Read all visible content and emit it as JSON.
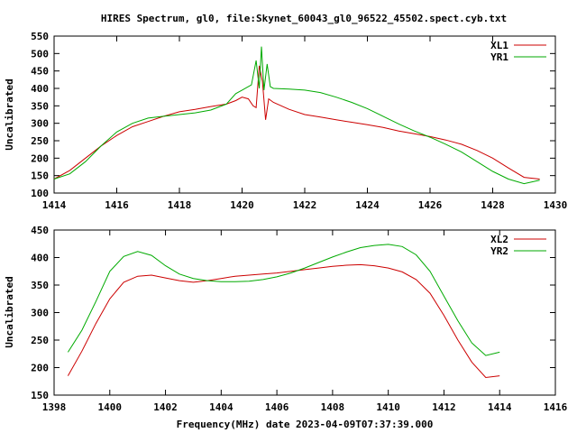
{
  "title": "HIRES Spectrum, gl0, file:Skynet_60043_gl0_96522_45502.spect.cyb.txt",
  "chart_data": [
    {
      "type": "line",
      "ylabel": "Uncalibrated",
      "xlabel": "",
      "xlim": [
        1414,
        1430
      ],
      "ylim": [
        100,
        550
      ],
      "xticks": [
        1414,
        1416,
        1418,
        1420,
        1422,
        1424,
        1426,
        1428,
        1430
      ],
      "xtick_labels": [
        "1414",
        "1416",
        "1418",
        "1420",
        "1422",
        "1424",
        "1426",
        "1428",
        "1430"
      ],
      "yticks": [
        100,
        150,
        200,
        250,
        300,
        350,
        400,
        450,
        500,
        550
      ],
      "ytick_labels": [
        "100",
        "150",
        "200",
        "250",
        "300",
        "350",
        "400",
        "450",
        "500",
        "550"
      ],
      "legend": "top-right",
      "series": [
        {
          "name": "XL1",
          "color": "#cc0000",
          "x": [
            1414.0,
            1414.5,
            1415.0,
            1415.5,
            1416.0,
            1416.5,
            1417.0,
            1417.5,
            1418.0,
            1418.5,
            1419.0,
            1419.5,
            1419.8,
            1420.0,
            1420.2,
            1420.35,
            1420.45,
            1420.55,
            1420.65,
            1420.75,
            1420.85,
            1421.0,
            1421.5,
            1422.0,
            1422.5,
            1423.0,
            1423.5,
            1424.0,
            1424.5,
            1425.0,
            1425.5,
            1426.0,
            1426.5,
            1427.0,
            1427.5,
            1428.0,
            1428.5,
            1429.0,
            1429.5
          ],
          "values": [
            140,
            165,
            200,
            235,
            265,
            290,
            305,
            320,
            333,
            340,
            348,
            355,
            365,
            375,
            370,
            350,
            345,
            465,
            420,
            310,
            370,
            360,
            340,
            325,
            318,
            310,
            303,
            296,
            288,
            278,
            270,
            262,
            252,
            240,
            222,
            200,
            172,
            145,
            140
          ]
        },
        {
          "name": "YR1",
          "color": "#00aa00",
          "x": [
            1414.0,
            1414.5,
            1415.0,
            1415.5,
            1416.0,
            1416.5,
            1417.0,
            1417.5,
            1418.0,
            1418.5,
            1419.0,
            1419.5,
            1419.8,
            1420.0,
            1420.3,
            1420.45,
            1420.55,
            1420.62,
            1420.7,
            1420.8,
            1420.9,
            1421.0,
            1421.5,
            1422.0,
            1422.5,
            1423.0,
            1423.5,
            1424.0,
            1424.5,
            1425.0,
            1425.5,
            1426.0,
            1426.5,
            1427.0,
            1427.5,
            1428.0,
            1428.5,
            1429.0,
            1429.5
          ],
          "values": [
            140,
            155,
            190,
            235,
            275,
            300,
            315,
            320,
            325,
            330,
            338,
            355,
            385,
            395,
            410,
            480,
            400,
            520,
            395,
            470,
            405,
            400,
            398,
            395,
            388,
            375,
            360,
            342,
            320,
            298,
            278,
            260,
            240,
            218,
            190,
            162,
            140,
            127,
            137
          ]
        }
      ]
    },
    {
      "type": "line",
      "ylabel": "Uncalibrated",
      "xlabel": "Frequency(MHz) date 2023-04-09T07:37:39.000",
      "xlim": [
        1398,
        1416
      ],
      "ylim": [
        150,
        450
      ],
      "xticks": [
        1398,
        1400,
        1402,
        1404,
        1406,
        1408,
        1410,
        1412,
        1414,
        1416
      ],
      "xtick_labels": [
        "1398",
        "1400",
        "1402",
        "1404",
        "1406",
        "1408",
        "1410",
        "1412",
        "1414",
        "1416"
      ],
      "yticks": [
        150,
        200,
        250,
        300,
        350,
        400,
        450
      ],
      "ytick_labels": [
        "150",
        "200",
        "250",
        "300",
        "350",
        "400",
        "450"
      ],
      "legend": "top-right",
      "series": [
        {
          "name": "XL2",
          "color": "#cc0000",
          "x": [
            1398.5,
            1399.0,
            1399.5,
            1400.0,
            1400.5,
            1401.0,
            1401.5,
            1402.0,
            1402.5,
            1403.0,
            1403.5,
            1404.0,
            1404.5,
            1405.0,
            1405.5,
            1406.0,
            1406.5,
            1407.0,
            1407.5,
            1408.0,
            1408.5,
            1409.0,
            1409.5,
            1410.0,
            1410.5,
            1411.0,
            1411.5,
            1412.0,
            1412.5,
            1413.0,
            1413.5,
            1414.0
          ],
          "values": [
            185,
            230,
            280,
            325,
            355,
            366,
            368,
            363,
            358,
            355,
            358,
            362,
            366,
            368,
            370,
            372,
            375,
            378,
            381,
            384,
            386,
            387,
            385,
            381,
            374,
            360,
            335,
            295,
            250,
            210,
            182,
            185
          ]
        },
        {
          "name": "YR2",
          "color": "#00aa00",
          "x": [
            1398.5,
            1399.0,
            1399.5,
            1400.0,
            1400.5,
            1401.0,
            1401.5,
            1402.0,
            1402.5,
            1403.0,
            1403.5,
            1404.0,
            1404.5,
            1405.0,
            1405.5,
            1406.0,
            1406.5,
            1407.0,
            1407.5,
            1408.0,
            1408.5,
            1409.0,
            1409.5,
            1410.0,
            1410.5,
            1411.0,
            1411.5,
            1412.0,
            1412.5,
            1413.0,
            1413.5,
            1414.0
          ],
          "values": [
            228,
            268,
            320,
            375,
            402,
            411,
            404,
            385,
            370,
            362,
            358,
            356,
            356,
            357,
            360,
            365,
            372,
            381,
            391,
            401,
            410,
            418,
            422,
            424,
            420,
            405,
            375,
            330,
            285,
            245,
            222,
            228
          ]
        }
      ]
    }
  ]
}
